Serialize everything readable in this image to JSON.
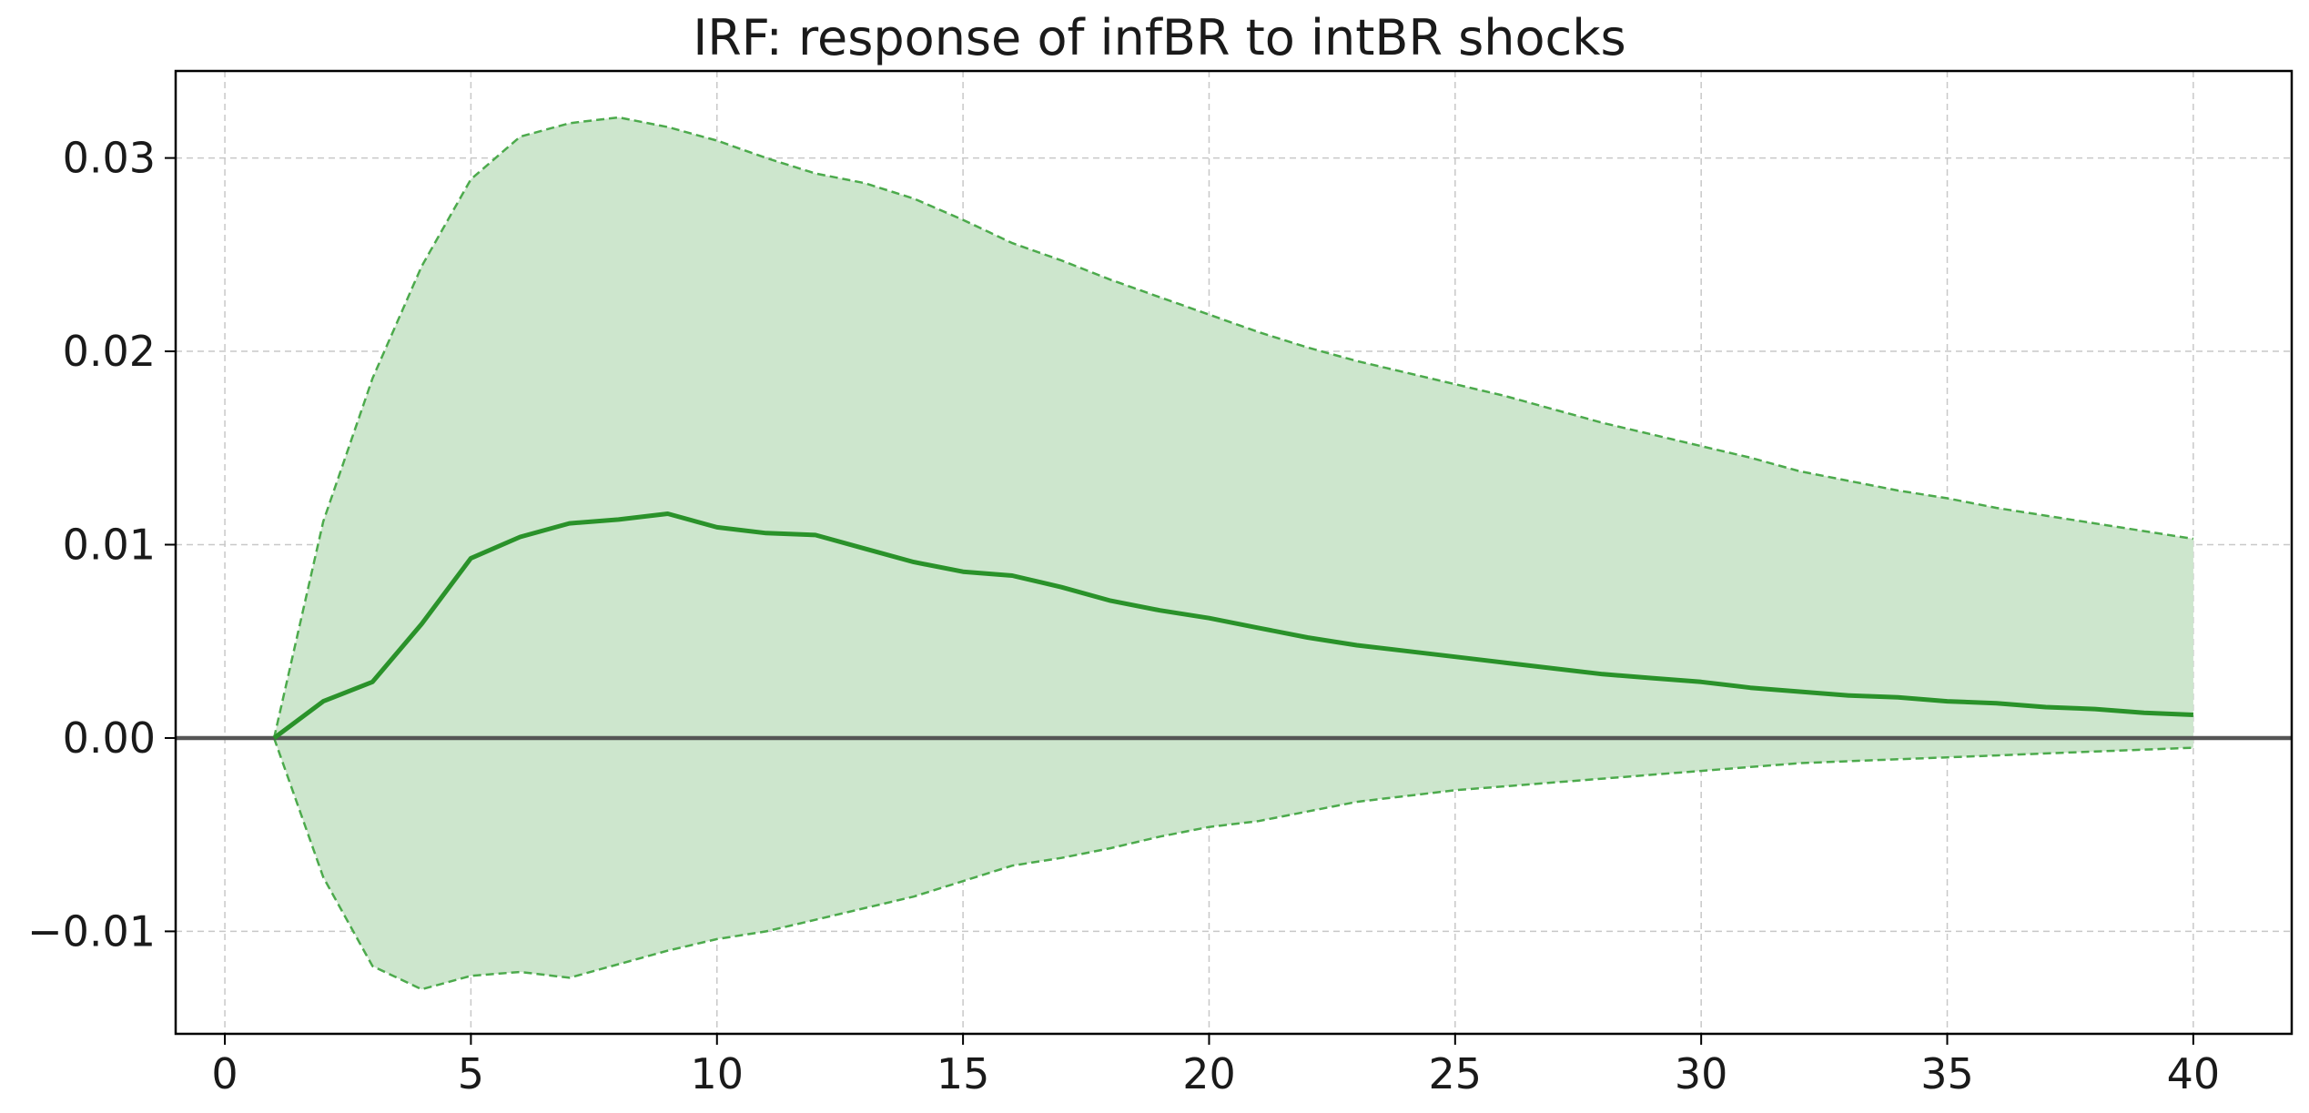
{
  "chart_data": {
    "type": "line",
    "title": "IRF: response of infBR to intBR shocks",
    "xlabel": "",
    "ylabel": "",
    "xlim": [
      -1,
      42
    ],
    "ylim": [
      -0.0153,
      0.0345
    ],
    "xticks": [
      0,
      5,
      10,
      15,
      20,
      25,
      30,
      35,
      40
    ],
    "xtick_labels": [
      "0",
      "5",
      "10",
      "15",
      "20",
      "25",
      "30",
      "35",
      "40"
    ],
    "yticks": [
      -0.01,
      0.0,
      0.01,
      0.02,
      0.03
    ],
    "ytick_labels": [
      "−0.01",
      "0.00",
      "0.01",
      "0.02",
      "0.03"
    ],
    "grid": true,
    "zero_line": 0.0,
    "colors": {
      "line": "#2a922a",
      "band_fill": "#cde6cd",
      "band_edge": "#4caa4c",
      "zero_line": "#555555"
    },
    "x": [
      1,
      2,
      3,
      4,
      5,
      6,
      7,
      8,
      9,
      10,
      11,
      12,
      13,
      14,
      15,
      16,
      17,
      18,
      19,
      20,
      21,
      22,
      23,
      24,
      25,
      26,
      27,
      28,
      29,
      30,
      31,
      32,
      33,
      34,
      35,
      36,
      37,
      38,
      39,
      40
    ],
    "series": [
      {
        "role": "response",
        "values": [
          0.0,
          0.0019,
          0.0029,
          0.0059,
          0.0093,
          0.0104,
          0.0111,
          0.0113,
          0.0116,
          0.0109,
          0.0106,
          0.0105,
          0.0098,
          0.0091,
          0.0086,
          0.0084,
          0.0078,
          0.0071,
          0.0066,
          0.0062,
          0.0057,
          0.0052,
          0.0048,
          0.0045,
          0.0042,
          0.0039,
          0.0036,
          0.0033,
          0.0031,
          0.0029,
          0.0026,
          0.0024,
          0.0022,
          0.0021,
          0.0019,
          0.0018,
          0.0016,
          0.0015,
          0.0013,
          0.0012
        ]
      },
      {
        "role": "upper_band",
        "values": [
          0.0,
          0.0112,
          0.0186,
          0.0244,
          0.0289,
          0.0311,
          0.0318,
          0.0321,
          0.0316,
          0.0309,
          0.03,
          0.0292,
          0.0287,
          0.0279,
          0.0268,
          0.0256,
          0.0247,
          0.0237,
          0.0228,
          0.0219,
          0.021,
          0.0202,
          0.0195,
          0.0189,
          0.0183,
          0.0177,
          0.017,
          0.0163,
          0.0157,
          0.0151,
          0.0145,
          0.0138,
          0.0133,
          0.0128,
          0.0124,
          0.0119,
          0.0115,
          0.0111,
          0.0107,
          0.0103
        ]
      },
      {
        "role": "lower_band",
        "values": [
          0.0,
          -0.0072,
          -0.0118,
          -0.013,
          -0.0123,
          -0.0121,
          -0.0124,
          -0.0117,
          -0.011,
          -0.0104,
          -0.01,
          -0.0094,
          -0.0088,
          -0.0082,
          -0.0074,
          -0.0066,
          -0.0062,
          -0.0057,
          -0.0051,
          -0.0046,
          -0.0043,
          -0.0038,
          -0.0033,
          -0.003,
          -0.0027,
          -0.0025,
          -0.0023,
          -0.0021,
          -0.0019,
          -0.0017,
          -0.0015,
          -0.0013,
          -0.0012,
          -0.0011,
          -0.001,
          -0.0009,
          -0.0008,
          -0.0007,
          -0.0006,
          -0.0005
        ]
      }
    ]
  }
}
